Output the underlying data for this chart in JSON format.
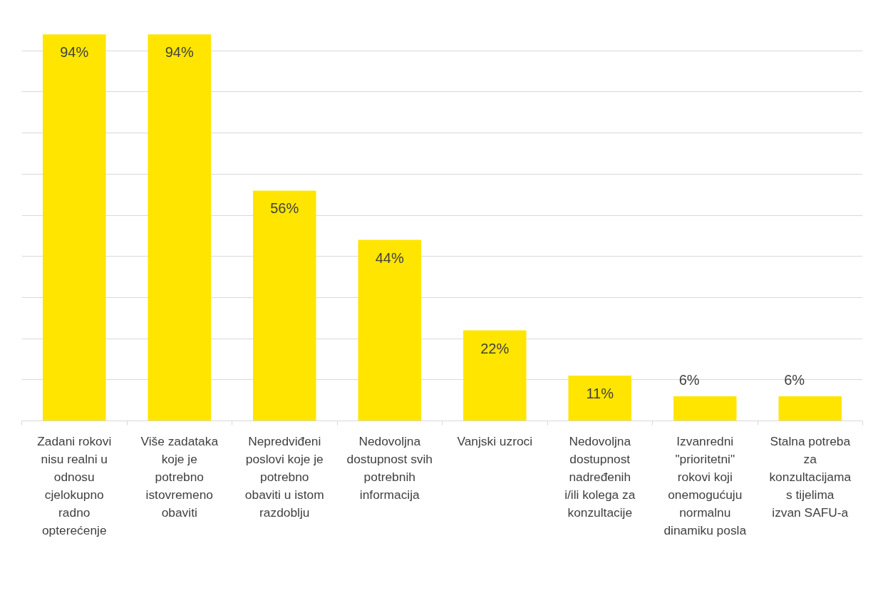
{
  "chart_data": {
    "type": "bar",
    "categories": [
      "Zadani rokovi nisu realni u odnosu cjelokupno radno opterećenje",
      "Više zadataka koje je potrebno istovremeno obaviti",
      "Nepredviđeni poslovi koje je potrebno obaviti u istom razdoblju",
      "Nedovoljna dostupnost svih potrebnih informacija",
      "Vanjski uzroci",
      "Nedovoljna dostupnost nadređenih i/ili kolega za konzultacije",
      "Izvanredni \"prioritetni\" rokovi koji onemogućuju normalnu dinamiku posla",
      "Stalna potreba za konzultacijama s tijelima izvan SAFU-a"
    ],
    "values": [
      94,
      94,
      56,
      44,
      22,
      11,
      6,
      6
    ],
    "value_labels": [
      "94%",
      "94%",
      "56%",
      "44%",
      "22%",
      "11%",
      "6%",
      "6%"
    ],
    "color": "#ffe500",
    "grid": "y",
    "tick_labels": "x"
  }
}
